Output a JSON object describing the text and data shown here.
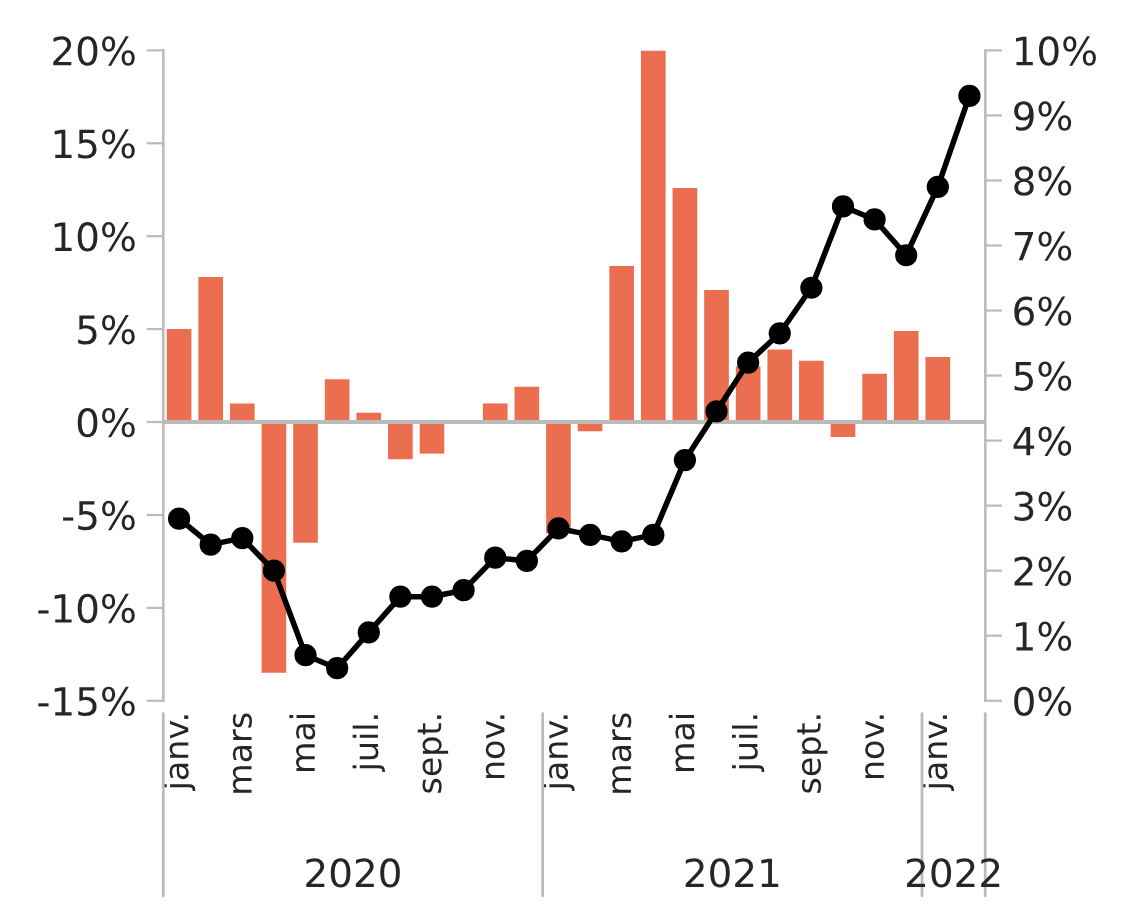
{
  "chart_data": {
    "type": "bar",
    "categories": [
      "janv.",
      null,
      "mars",
      null,
      "mai",
      null,
      "juil.",
      null,
      "sept.",
      null,
      "nov.",
      null,
      "janv.",
      null,
      "mars",
      null,
      "mai",
      null,
      "juil.",
      null,
      "sept.",
      null,
      "nov.",
      null,
      "janv.",
      null
    ],
    "series": [
      {
        "color": "#ec6e50",
        "values": [
          5.0,
          7.8,
          1.0,
          -13.5,
          -6.5,
          2.3,
          0.5,
          -2.0,
          -1.7,
          0.0,
          1.0,
          1.9,
          -6.0,
          -0.5,
          8.4,
          20.0,
          12.6,
          7.1,
          3.0,
          3.9,
          3.3,
          -0.8,
          2.6,
          4.9,
          3.5,
          null
        ]
      },
      {
        "type": "line",
        "axis": "y2",
        "color": "#000000",
        "marker": "circle",
        "line_style": "solid",
        "values": [
          2.8,
          2.4,
          2.5,
          2.0,
          0.7,
          0.5,
          1.05,
          1.6,
          1.6,
          1.7,
          2.2,
          2.15,
          2.65,
          2.55,
          2.45,
          2.55,
          3.7,
          4.45,
          5.2,
          5.65,
          6.35,
          7.6,
          7.4,
          6.85,
          7.9,
          9.3
        ]
      }
    ],
    "ylim": [
      -15,
      20
    ],
    "yticks": [
      {
        "value": -15,
        "label": "-15%"
      },
      {
        "value": -10,
        "label": "-10%"
      },
      {
        "value": -5,
        "label": "-5%"
      },
      {
        "value": 0,
        "label": "0%"
      },
      {
        "value": 5,
        "label": "5%"
      },
      {
        "value": 10,
        "label": "10%"
      },
      {
        "value": 15,
        "label": "15%"
      },
      {
        "value": 20,
        "label": "20%"
      }
    ],
    "y2lim": [
      0,
      10
    ],
    "y2ticks": [
      {
        "value": 0,
        "label": "0%"
      },
      {
        "value": 1,
        "label": "1%"
      },
      {
        "value": 2,
        "label": "2%"
      },
      {
        "value": 3,
        "label": "3%"
      },
      {
        "value": 4,
        "label": "4%"
      },
      {
        "value": 5,
        "label": "5%"
      },
      {
        "value": 6,
        "label": "6%"
      },
      {
        "value": 7,
        "label": "7%"
      },
      {
        "value": 8,
        "label": "8%"
      },
      {
        "value": 9,
        "label": "9%"
      },
      {
        "value": 10,
        "label": "10%"
      }
    ],
    "ref_lines": [
      {
        "axis": "y",
        "value": 0,
        "color": "#bbbbbb"
      }
    ],
    "annotations": [
      "2020",
      "2021",
      "2022"
    ],
    "grid": false
  }
}
